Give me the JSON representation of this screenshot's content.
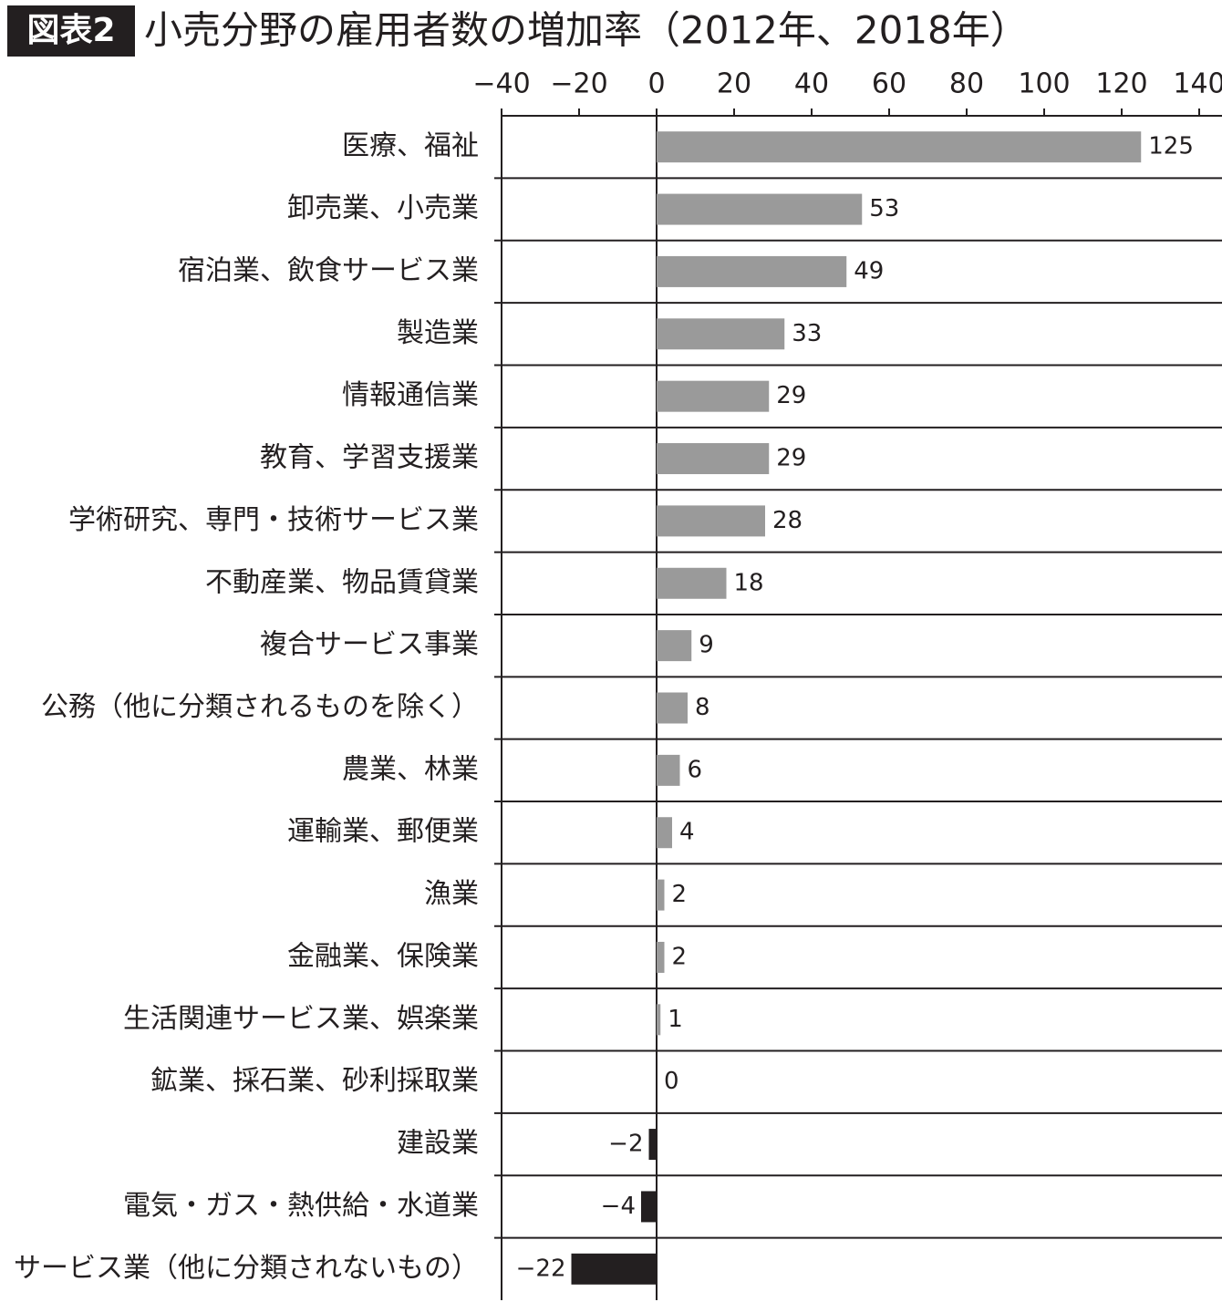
{
  "chart_data": {
    "type": "hbar",
    "label": "図表2",
    "title": "小売分野の雇用者数の増加率（2012年、2018年）",
    "categories": [
      "医療、福祉",
      "卸売業、小売業",
      "宿泊業、飲食サービス業",
      "製造業",
      "情報通信業",
      "教育、学習支援業",
      "学術研究、専門・技術サービス業",
      "不動産業、物品賃貸業",
      "複合サービス事業",
      "公務（他に分類されるものを除く）",
      "農業、林業",
      "運輸業、郵便業",
      "漁業",
      "金融業、保険業",
      "生活関連サービス業、娯楽業",
      "鉱業、採石業、砂利採取業",
      "建設業",
      "電気・ガス・熱供給・水道業",
      "サービス業（他に分類されないもの）"
    ],
    "values": [
      125,
      53,
      49,
      33,
      29,
      29,
      28,
      18,
      9,
      8,
      6,
      4,
      2,
      2,
      1,
      0,
      -2,
      -4,
      -22
    ],
    "value_labels": [
      "125",
      "53",
      "49",
      "33",
      "29",
      "29",
      "28",
      "18",
      "9",
      "8",
      "6",
      "4",
      "2",
      "2",
      "1",
      "0",
      "−2",
      "−4",
      "−22"
    ],
    "color": "#9a9a9a",
    "negative_color": "#231f20",
    "xlim": [
      -40,
      140
    ],
    "xticks": [
      {
        "value": -40,
        "label": "−40"
      },
      {
        "value": -20,
        "label": "−20"
      },
      0,
      20,
      40,
      60,
      80,
      100,
      120,
      140
    ]
  }
}
